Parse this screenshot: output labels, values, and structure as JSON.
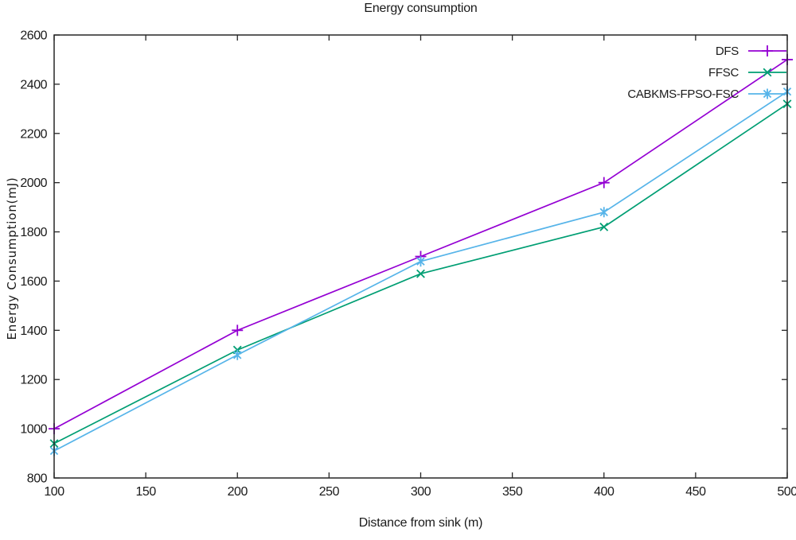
{
  "chart_data": {
    "type": "line",
    "title": "Energy consumption",
    "xlabel": "Distance from sink (m)",
    "ylabel": "Energy Consumption(mJ)",
    "x": [
      100,
      200,
      300,
      400,
      500
    ],
    "series": [
      {
        "name": "DFS",
        "color": "#9400D3",
        "marker": "plus",
        "values": [
          1000,
          1400,
          1700,
          2000,
          2500
        ]
      },
      {
        "name": "FFSC",
        "color": "#009E73",
        "marker": "cross",
        "values": [
          940,
          1320,
          1630,
          1820,
          2320
        ]
      },
      {
        "name": "CABKMS-FPSO-FSC",
        "color": "#56B4E9",
        "marker": "asterisk",
        "values": [
          910,
          1300,
          1680,
          1880,
          2370
        ]
      }
    ],
    "xlim": [
      100,
      500
    ],
    "ylim": [
      800,
      2600
    ],
    "xticks": [
      100,
      150,
      200,
      250,
      300,
      350,
      400,
      450,
      500
    ],
    "yticks": [
      800,
      1000,
      1200,
      1400,
      1600,
      1800,
      2000,
      2200,
      2400,
      2600
    ],
    "grid": false,
    "legend_position": "top-right-inside",
    "axis_color": "#262626",
    "text_color": "#1a1a1a"
  }
}
